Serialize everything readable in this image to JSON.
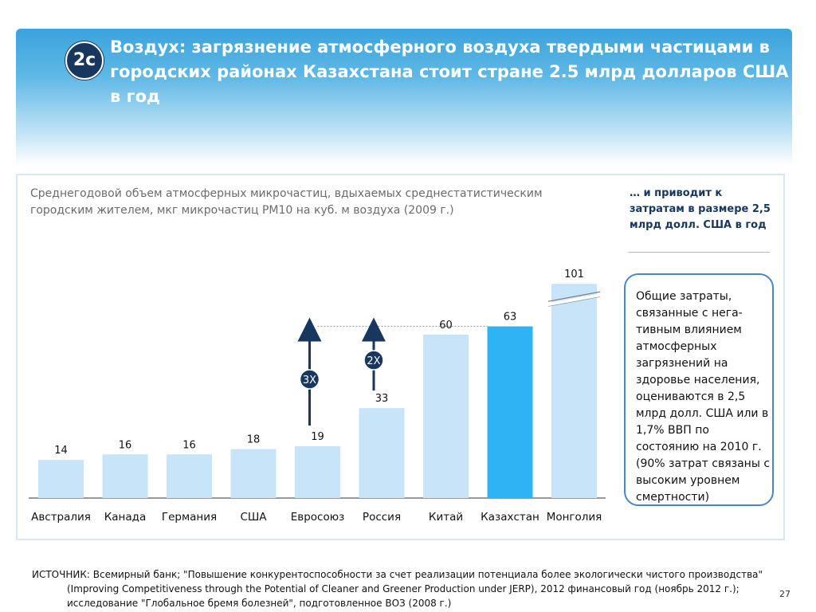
{
  "slide": {
    "badge": "2c",
    "title": "Воздух: загрязнение атмосферного воздуха твердыми частицами в городских районах Казахстана стоит стране 2.5 млрд долларов США в год",
    "subtitle": "Среднегодовой объем атмосферных микрочастиц, вдыхаемых среднестатистическим городским жителем, мкг микрочастиц РМ10 на куб. м воздуха (2009 г.)",
    "note_top": "… и приводит к затратам в размере 2,5 млрд долл. США в год",
    "callout": "Общие затраты, связанные с нега-тивным влиянием атмосферных загрязнений на здоровье населения, оцениваются в 2,5 млрд долл. США или в 1,7% ВВП по состоянию на 2010 г. (90% затрат связаны с высоким уровнем смертности)",
    "source_line1": "ИСТОЧНИК: Всемирный банк; \"Повышение конкурентоспособности за счет реализации потенциала более экологически чистого производства\"",
    "source_rest": "(Improving Competitiveness through the Potential of Cleaner and Greener Production under JERP), 2012 финансовый год (ноябрь 2012 г.); исследование \"Глобальное бремя болезней\", подготовленное ВОЗ (2008 г.)",
    "page_number": "27"
  },
  "colors": {
    "bar": "#c7e4f8",
    "highlight": "#2fb3f5",
    "arrow": "#17375e",
    "title_bg": "#3aa3dc"
  },
  "chart_data": {
    "type": "bar",
    "categories": [
      "Австралия",
      "Канада",
      "Германия",
      "США",
      "Евросоюз",
      "Россия",
      "Китай",
      "Казахстан",
      "Монголия"
    ],
    "values": [
      14,
      16,
      16,
      18,
      19,
      33,
      60,
      63,
      101
    ],
    "value_labels": [
      "14",
      "16",
      "16",
      "18",
      "19",
      "33",
      "60",
      "63",
      "101"
    ],
    "highlight": "Казахстан",
    "broken_axis_category": "Монголия",
    "annotations": [
      {
        "from": "Евросоюз",
        "to": "Казахстан",
        "label": "3X"
      },
      {
        "from": "Россия",
        "to": "Казахстан",
        "label": "2X"
      }
    ],
    "title": "",
    "xlabel": "",
    "ylabel": ""
  }
}
